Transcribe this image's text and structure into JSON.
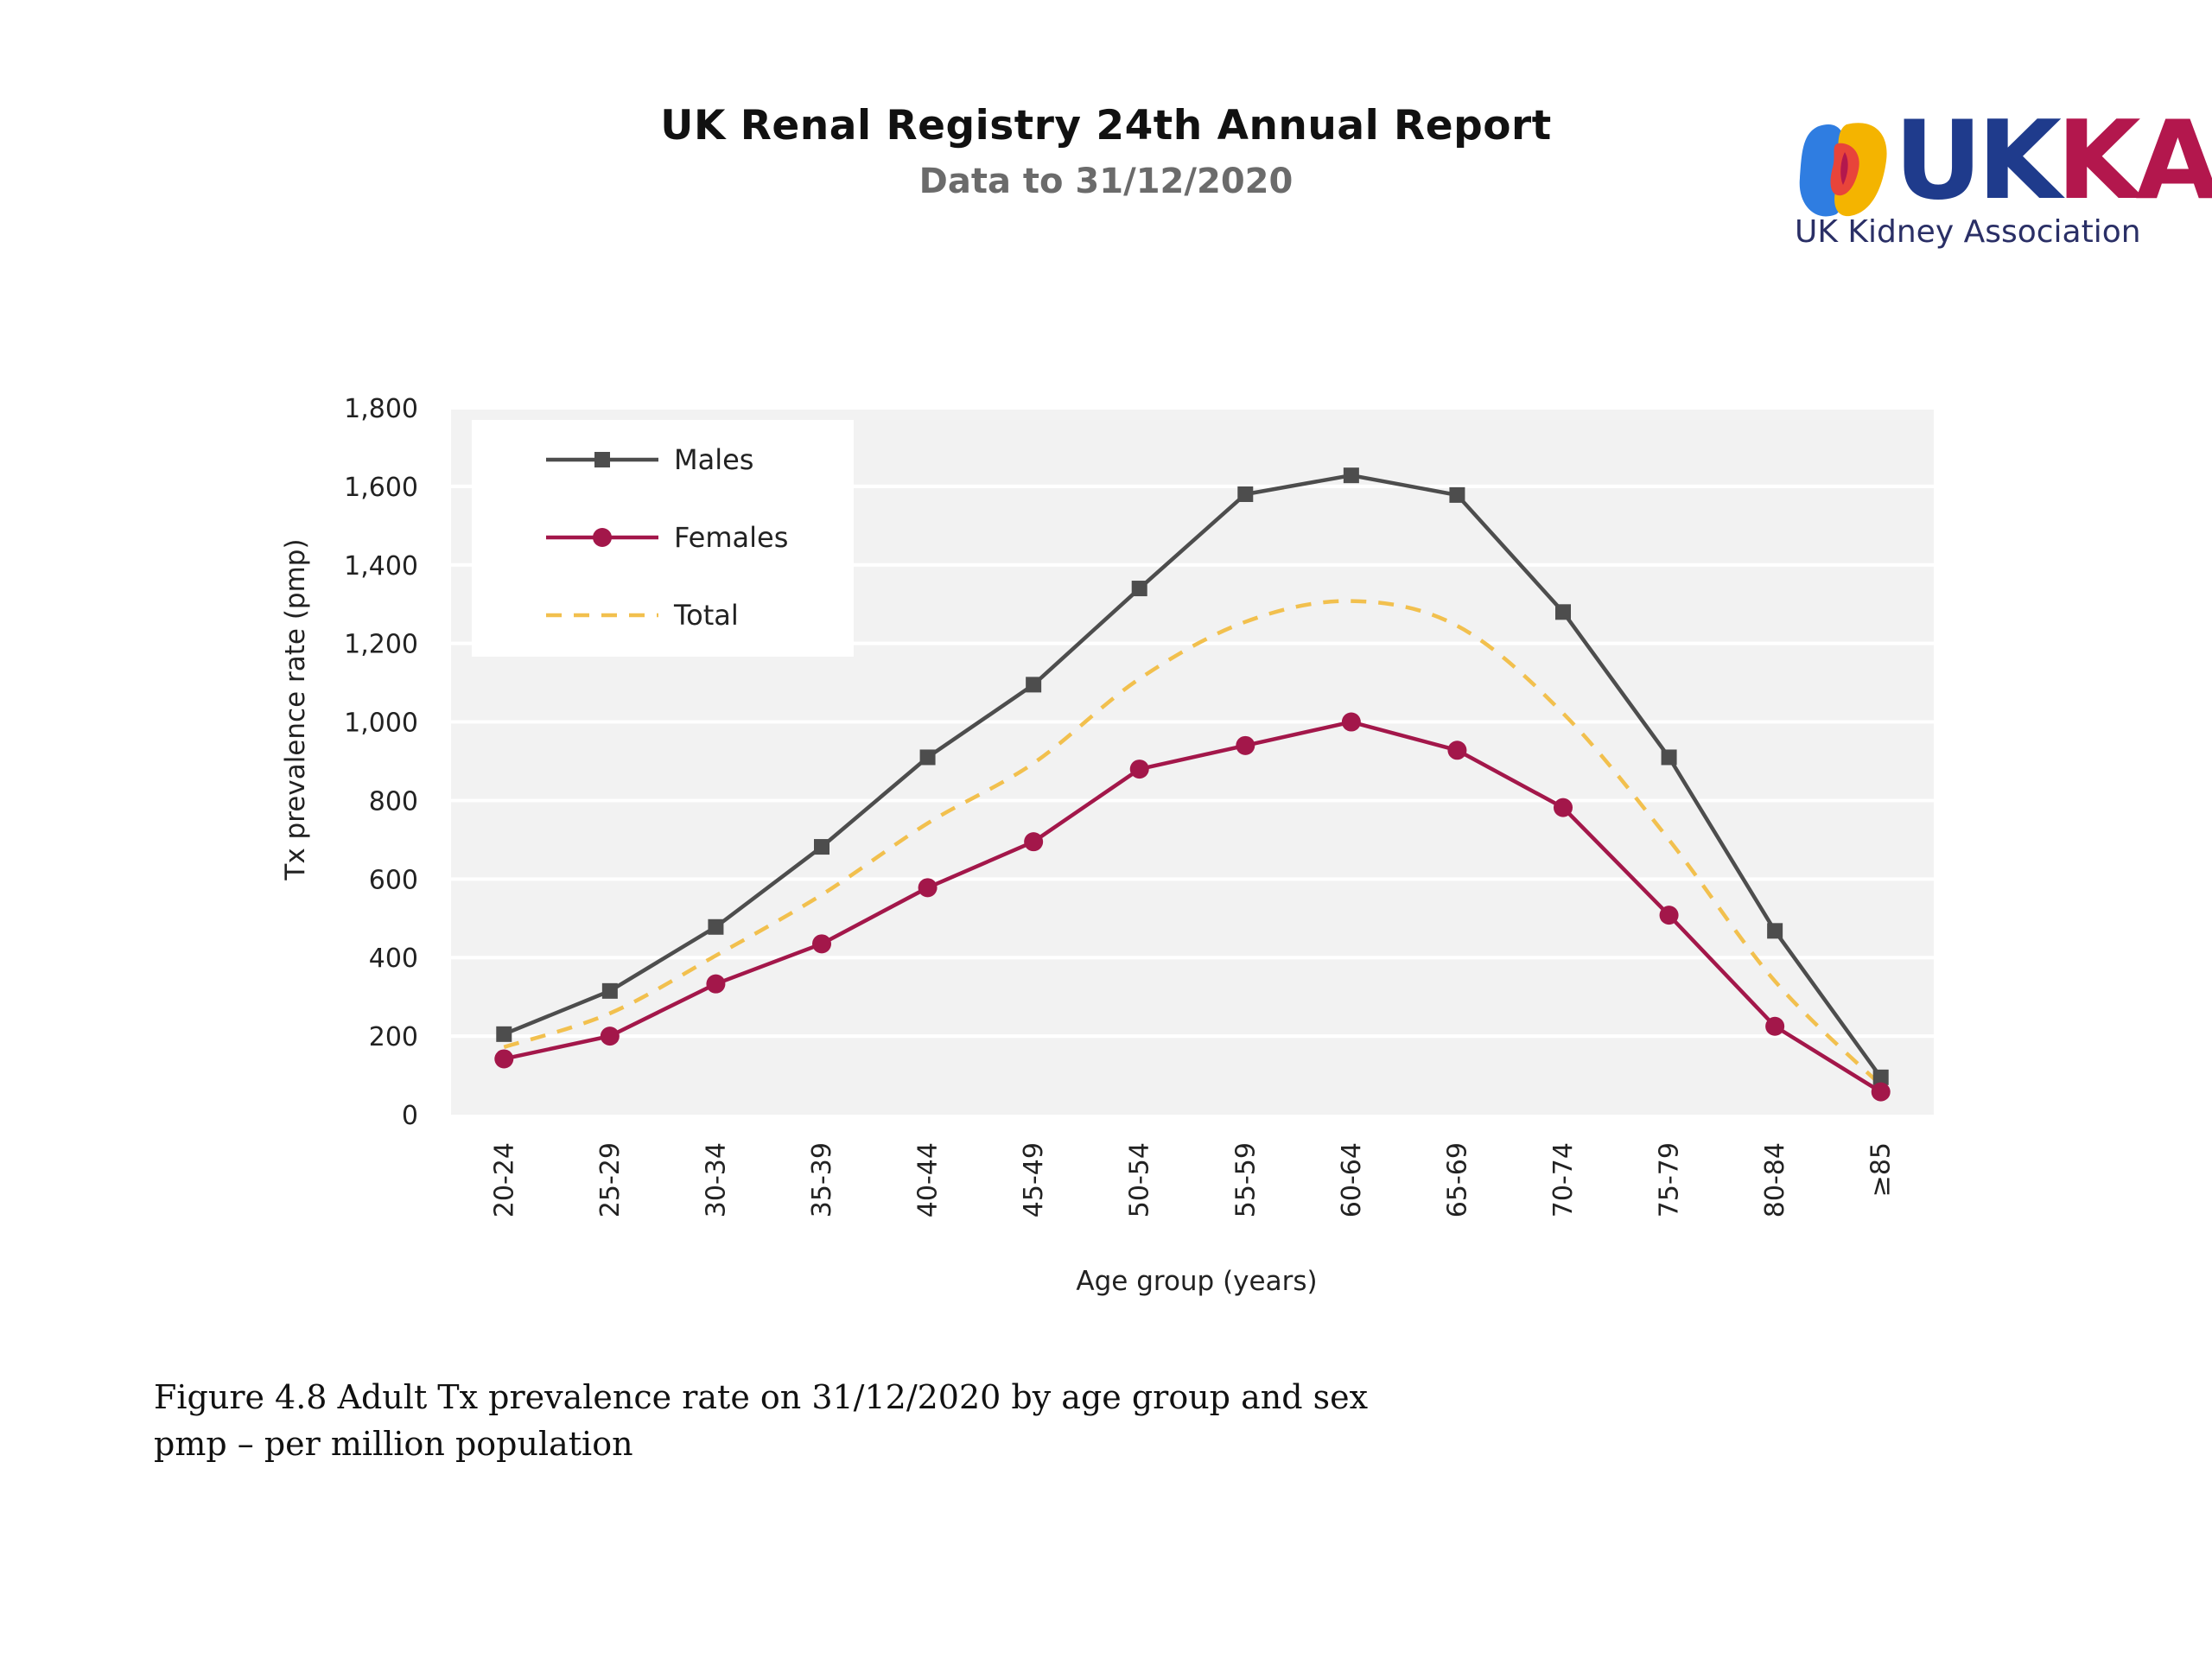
{
  "header": {
    "title": "UK Renal Registry 24th Annual Report",
    "subtitle": "Data to 31/12/2020"
  },
  "logo": {
    "wordmark": "UKKA",
    "tagline": "UK Kidney Association",
    "colors": [
      "#1f3b8c",
      "#b3174d",
      "#f4b400",
      "#2f7de1",
      "#e8443a"
    ]
  },
  "chart_data": {
    "type": "line",
    "title": "",
    "xlabel": "Age group (years)",
    "ylabel": "Tx prevalence rate (pmp)",
    "ylim": [
      0,
      1800
    ],
    "yticks": [
      "0",
      "200",
      "400",
      "600",
      "800",
      "1,000",
      "1,200",
      "1,400",
      "1,600",
      "1,800"
    ],
    "grid": true,
    "legend_position": "top-left",
    "categories": [
      "20-24",
      "25-29",
      "30-34",
      "35-39",
      "40-44",
      "45-49",
      "50-54",
      "55-59",
      "60-64",
      "65-69",
      "70-74",
      "75-79",
      "80-84",
      "≥85"
    ],
    "series": [
      {
        "name": "Males",
        "color": "#4d4d4d",
        "marker": "square",
        "dash": "solid",
        "values": [
          205,
          315,
          478,
          682,
          910,
          1095,
          1340,
          1580,
          1628,
          1578,
          1280,
          910,
          468,
          95
        ]
      },
      {
        "name": "Females",
        "color": "#a3174a",
        "marker": "circle",
        "dash": "solid",
        "values": [
          142,
          200,
          333,
          435,
          578,
          695,
          880,
          940,
          1000,
          928,
          782,
          508,
          225,
          58
        ]
      },
      {
        "name": "Total",
        "color": "#f2c04e",
        "marker": "none",
        "dash": "dashed",
        "values": [
          172,
          258,
          405,
          560,
          742,
          895,
          1110,
          1255,
          1308,
          1245,
          1022,
          700,
          340,
          75
        ]
      }
    ]
  },
  "caption": {
    "line1": "Figure 4.8 Adult Tx prevalence rate on 31/12/2020 by age group and sex",
    "line2": "pmp – per million population"
  }
}
